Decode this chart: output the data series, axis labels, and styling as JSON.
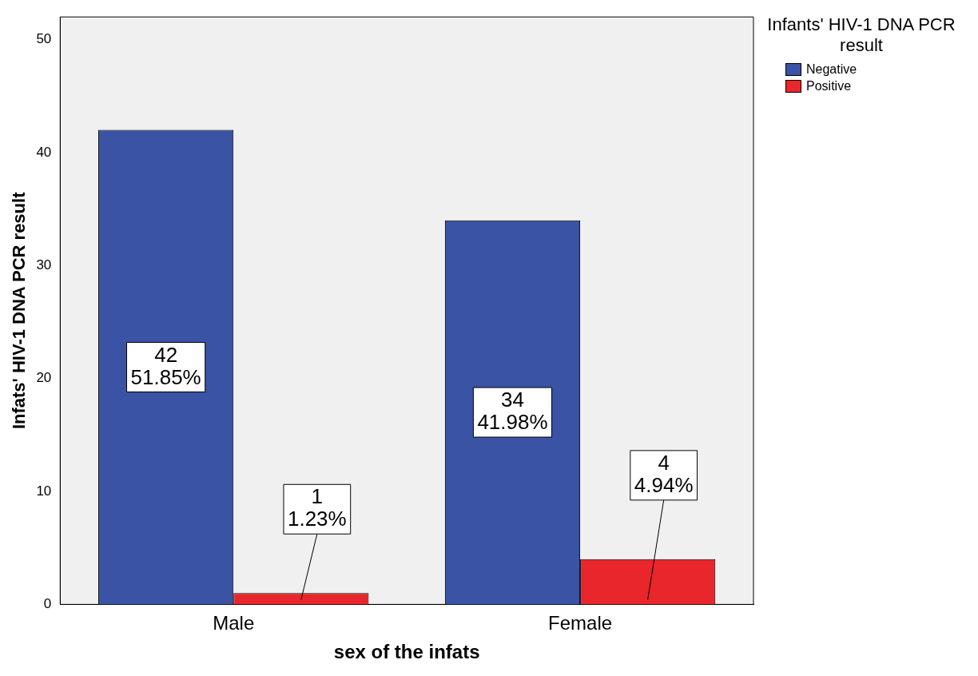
{
  "chart_data": {
    "type": "bar",
    "xlabel": "sex of the infats",
    "ylabel": "Infats' HIV-1 DNA PCR result",
    "legend_title": "Infants' HIV-1 DNA PCR result",
    "categories": [
      "Male",
      "Female"
    ],
    "series": [
      {
        "name": "Negative",
        "color": "#3a53a4",
        "values": [
          42,
          34
        ],
        "value_labels": [
          "42\n51.85%",
          "34\n41.98%"
        ]
      },
      {
        "name": "Positive",
        "color": "#e8262b",
        "values": [
          1,
          4
        ],
        "value_labels": [
          "1\n1.23%",
          "4\n4.94%"
        ]
      }
    ],
    "ylim": [
      0,
      52
    ],
    "yticks": [
      0,
      10,
      20,
      30,
      40,
      50
    ],
    "grid": false,
    "legend": "right"
  }
}
